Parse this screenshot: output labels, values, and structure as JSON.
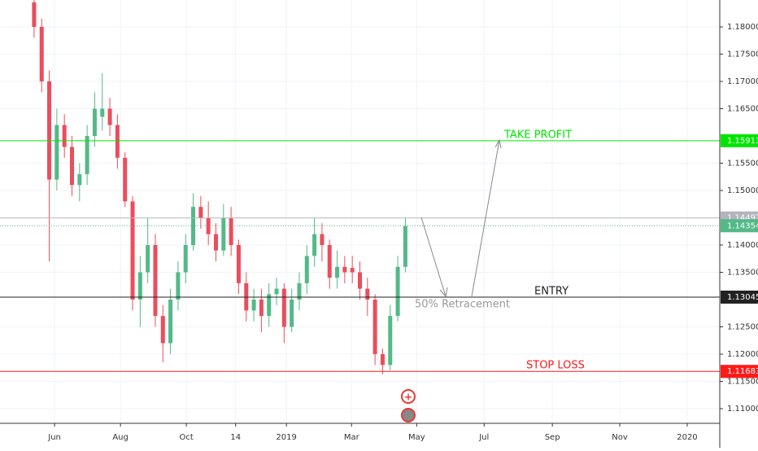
{
  "chart_data": {
    "type": "candlestick",
    "x": [
      4.5,
      5.5,
      6.5,
      7.5,
      8.5,
      9.5,
      10.5,
      11.5,
      12.5,
      13.5,
      14.5,
      15.5,
      16.5,
      17.5,
      18.5,
      19.5,
      20.5,
      21.5,
      22.5,
      23.5,
      24.5,
      25.5,
      26.5,
      27.5,
      28.5,
      29.5,
      30.5,
      31.5,
      32.5,
      33.5,
      34.5,
      35.5,
      36.5,
      37.5,
      38.5,
      39.5,
      40.5,
      41.5,
      42.5,
      43.5,
      44.5,
      45.5,
      46.5,
      47.5,
      48.5,
      49.5,
      50.5,
      51.5,
      52.5,
      53.5
    ],
    "open": [
      1.1845,
      1.18,
      1.17,
      1.152,
      1.162,
      1.158,
      1.151,
      1.153,
      1.16,
      1.1635,
      1.165,
      1.162,
      1.156,
      1.148,
      1.13,
      1.135,
      1.14,
      1.127,
      1.122,
      1.13,
      1.135,
      1.14,
      1.147,
      1.145,
      1.142,
      1.139,
      1.145,
      1.14,
      1.133,
      1.128,
      1.13,
      1.127,
      1.131,
      1.132,
      1.125,
      1.13,
      1.133,
      1.138,
      1.142,
      1.14,
      1.134,
      1.136,
      1.1358,
      1.135,
      1.132,
      1.13,
      1.12,
      1.118,
      1.127,
      1.136
    ],
    "high": [
      1.1855,
      1.1815,
      1.172,
      1.165,
      1.164,
      1.16,
      1.155,
      1.162,
      1.168,
      1.1715,
      1.167,
      1.164,
      1.157,
      1.149,
      1.138,
      1.145,
      1.142,
      1.129,
      1.132,
      1.137,
      1.142,
      1.1495,
      1.149,
      1.148,
      1.144,
      1.1475,
      1.147,
      1.141,
      1.135,
      1.132,
      1.132,
      1.133,
      1.134,
      1.133,
      1.132,
      1.135,
      1.14,
      1.145,
      1.144,
      1.141,
      1.139,
      1.138,
      1.138,
      1.137,
      1.134,
      1.131,
      1.121,
      1.129,
      1.138,
      1.145
    ],
    "low": [
      1.178,
      1.168,
      1.137,
      1.15,
      1.156,
      1.149,
      1.148,
      1.151,
      1.158,
      1.161,
      1.16,
      1.154,
      1.147,
      1.128,
      1.125,
      1.133,
      1.125,
      1.1185,
      1.12,
      1.128,
      1.133,
      1.139,
      1.143,
      1.14,
      1.137,
      1.138,
      1.138,
      1.131,
      1.126,
      1.126,
      1.124,
      1.125,
      1.129,
      1.122,
      1.124,
      1.128,
      1.131,
      1.136,
      1.137,
      1.132,
      1.132,
      1.133,
      1.133,
      1.13,
      1.127,
      1.118,
      1.1163,
      1.117,
      1.126,
      1.135
    ],
    "close": [
      1.18,
      1.17,
      1.152,
      1.162,
      1.158,
      1.151,
      1.153,
      1.16,
      1.165,
      1.165,
      1.162,
      1.156,
      1.148,
      1.13,
      1.135,
      1.14,
      1.127,
      1.122,
      1.13,
      1.135,
      1.14,
      1.147,
      1.145,
      1.142,
      1.139,
      1.145,
      1.14,
      1.133,
      1.128,
      1.13,
      1.127,
      1.131,
      1.132,
      1.125,
      1.13,
      1.133,
      1.138,
      1.142,
      1.14,
      1.134,
      1.136,
      1.135,
      1.135,
      1.132,
      1.13,
      1.12,
      1.118,
      1.127,
      1.136,
      1.1435
    ],
    "up_color": "#53b987",
    "down_color": "#eb4d5c",
    "xlim": [
      0,
      95
    ],
    "xticks": [
      {
        "value": 7.2,
        "label": "Jun"
      },
      {
        "value": 15.9,
        "label": "Aug"
      },
      {
        "value": 24.6,
        "label": "Oct"
      },
      {
        "value": 31.1,
        "label": "14"
      },
      {
        "value": 37.8,
        "label": "2019"
      },
      {
        "value": 46.4,
        "label": "Mar"
      },
      {
        "value": 55,
        "label": "May"
      },
      {
        "value": 63.9,
        "label": "Jul"
      },
      {
        "value": 72.9,
        "label": "Sep"
      },
      {
        "value": 81.8,
        "label": "Nov"
      },
      {
        "value": 90.7,
        "label": "2020"
      }
    ],
    "ylim": [
      1.10731,
      1.18493
    ],
    "yticks": [
      {
        "value": 1.18,
        "label": "1.18000"
      },
      {
        "value": 1.175,
        "label": "1.17500"
      },
      {
        "value": 1.17,
        "label": "1.17000"
      },
      {
        "value": 1.165,
        "label": "1.16500"
      },
      {
        "value": 1.155,
        "label": "1.15500"
      },
      {
        "value": 1.15,
        "label": "1.15000"
      },
      {
        "value": 1.14,
        "label": "1.14000"
      },
      {
        "value": 1.135,
        "label": "1.13500"
      },
      {
        "value": 1.125,
        "label": "1.12500"
      },
      {
        "value": 1.12,
        "label": "1.12000"
      },
      {
        "value": 1.115,
        "label": "1.11500"
      },
      {
        "value": 1.11,
        "label": "1.11000"
      }
    ],
    "grid": true,
    "levels": [
      {
        "label": "TAKE PROFIT",
        "value": 1.15913,
        "color": "#00e600"
      },
      {
        "value": 1.14497,
        "color": "#b2b5be"
      },
      {
        "value": 1.14354,
        "color": "#53b987",
        "dotted": true
      },
      {
        "label": "ENTRY",
        "value": 1.13045,
        "color": "#222222"
      },
      {
        "label": "STOP LOSS",
        "value": 1.11683,
        "color": "#ff1a1a"
      }
    ],
    "annotation": "50% Retracement"
  }
}
